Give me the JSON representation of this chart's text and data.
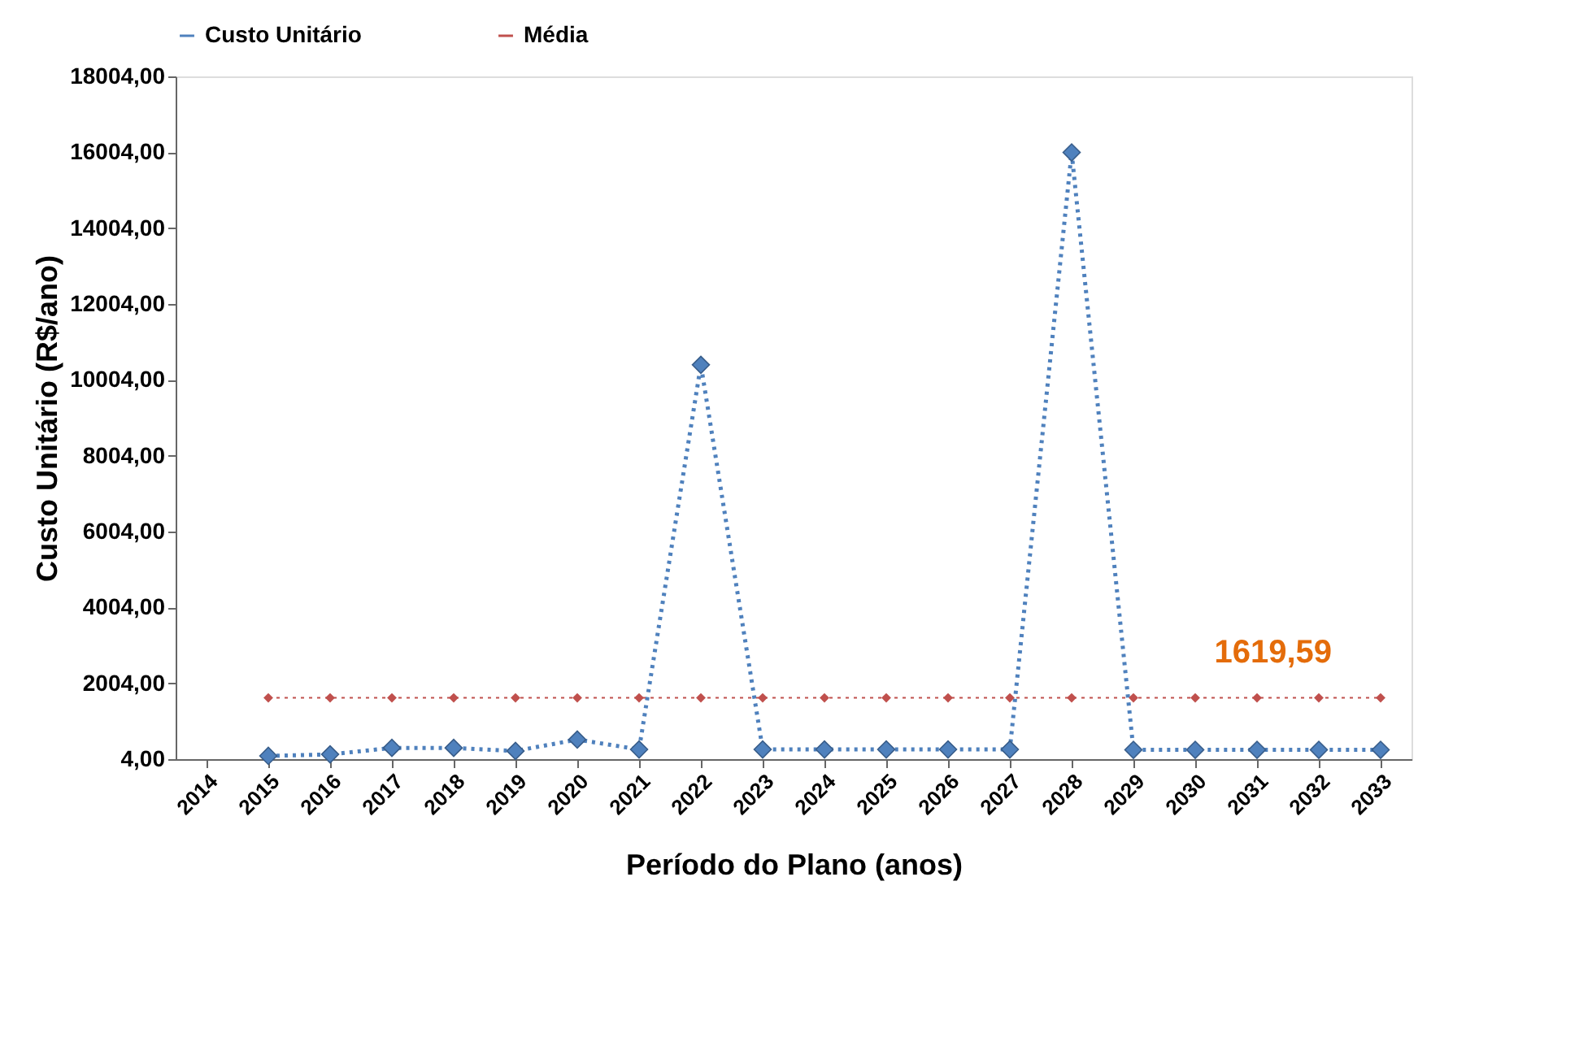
{
  "chart_data": {
    "type": "line",
    "xlabel": "Período do Plano (anos)",
    "ylabel": "Custo Unitário  (R$/ano)",
    "categories": [
      "2014",
      "2015",
      "2016",
      "2017",
      "2018",
      "2019",
      "2020",
      "2021",
      "2022",
      "2023",
      "2024",
      "2025",
      "2026",
      "2027",
      "2028",
      "2029",
      "2030",
      "2031",
      "2032",
      "2033"
    ],
    "series": [
      {
        "name": "Custo Unitário",
        "color": "#4f81bd",
        "line_style": "dotted",
        "marker": "diamond",
        "values": [
          null,
          90,
          130,
          300,
          300,
          220,
          520,
          260,
          10400,
          260,
          260,
          260,
          260,
          260,
          16000,
          250,
          250,
          250,
          250,
          250
        ]
      },
      {
        "name": "Média",
        "color": "#c0504d",
        "line_style": "dotted",
        "marker": "diamond",
        "values": [
          null,
          1619.59,
          1619.59,
          1619.59,
          1619.59,
          1619.59,
          1619.59,
          1619.59,
          1619.59,
          1619.59,
          1619.59,
          1619.59,
          1619.59,
          1619.59,
          1619.59,
          1619.59,
          1619.59,
          1619.59,
          1619.59,
          1619.59
        ]
      }
    ],
    "ylim": [
      4,
      18004
    ],
    "yticks": [
      {
        "value": 4,
        "label": "4,00"
      },
      {
        "value": 2004,
        "label": "2004,00"
      },
      {
        "value": 4004,
        "label": "4004,00"
      },
      {
        "value": 6004,
        "label": "6004,00"
      },
      {
        "value": 8004,
        "label": "8004,00"
      },
      {
        "value": 10004,
        "label": "10004,00"
      },
      {
        "value": 12004,
        "label": "12004,00"
      },
      {
        "value": 14004,
        "label": "14004,00"
      },
      {
        "value": 16004,
        "label": "16004,00"
      },
      {
        "value": 18004,
        "label": "18004,00"
      }
    ],
    "grid": false,
    "legend": "top",
    "annotations": [
      {
        "text": "1619,59",
        "x": "2033",
        "y": 1619.59
      }
    ]
  }
}
